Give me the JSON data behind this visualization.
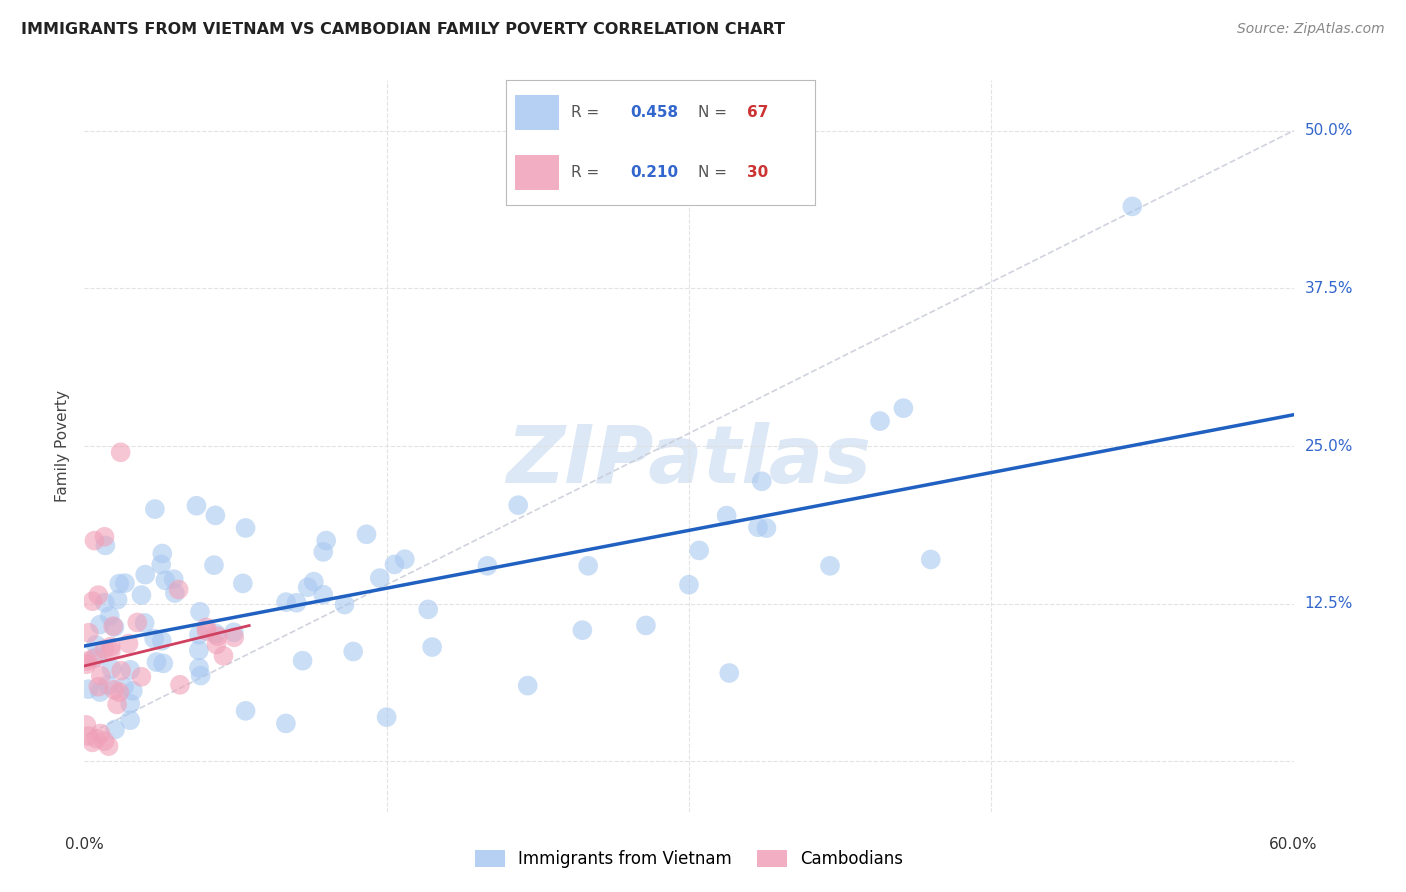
{
  "title": "IMMIGRANTS FROM VIETNAM VS CAMBODIAN FAMILY POVERTY CORRELATION CHART",
  "source": "Source: ZipAtlas.com",
  "ylabel": "Family Poverty",
  "yticks": [
    0.0,
    0.125,
    0.25,
    0.375,
    0.5
  ],
  "ytick_labels": [
    "",
    "12.5%",
    "25.0%",
    "37.5%",
    "50.0%"
  ],
  "xlim": [
    0.0,
    0.6
  ],
  "ylim": [
    -0.04,
    0.54
  ],
  "legend_label_blue": "Immigrants from Vietnam",
  "legend_label_pink": "Cambodians",
  "blue_color": "#a8c8f0",
  "pink_color": "#f0a0b8",
  "blue_line_color": "#2060c0",
  "pink_line_color": "#d04060",
  "diag_color": "#c8ccd8",
  "background_color": "#ffffff",
  "grid_color": "#e0e0e0",
  "title_color": "#222222",
  "source_color": "#888888",
  "ytick_color": "#3366cc",
  "xtick_color": "#333333",
  "legend_r_color": "#3366cc",
  "legend_n_color": "#cc3333",
  "watermark_color": "#dce8f5"
}
